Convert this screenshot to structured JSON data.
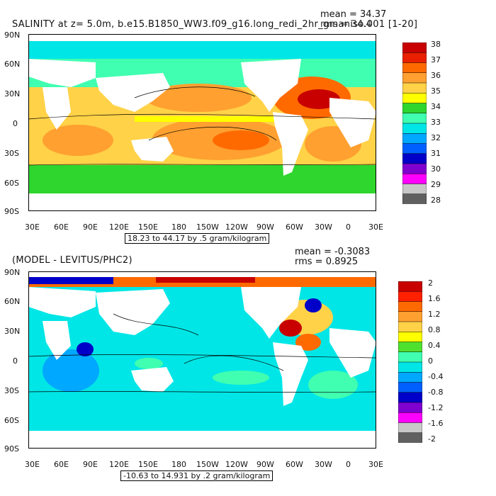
{
  "top_panel": {
    "title": "SALINITY at z=    5.0m, b.e15.B1850_WW3.f09_g16.long_redi_2hr_gmaniso.001 [1-20]",
    "mean_text": "mean = 34.37",
    "rms_text": "rms = 34.4",
    "range_text": "18.23 to 44.17 by .5 gram/kilogram",
    "colorbar": {
      "labels": [
        "38",
        "37",
        "36",
        "35",
        "34",
        "33",
        "32",
        "31",
        "30",
        "29",
        "28"
      ],
      "colors": [
        "#c80000",
        "#e82000",
        "#ff6a00",
        "#ffa030",
        "#ffd248",
        "#ffff00",
        "#2ed62e",
        "#40ffb0",
        "#00e6e6",
        "#00a8ff",
        "#0060ff",
        "#0000c8",
        "#8000d0",
        "#ff00ff",
        "#c8c8c8",
        "#606060"
      ]
    }
  },
  "bottom_panel": {
    "title": "(MODEL - LEVITUS/PHC2)",
    "mean_text": "mean = -0.3083",
    "rms_text": "rms = 0.8925",
    "range_text": "-10.63 to 14.931 by .2 gram/kilogram",
    "colorbar": {
      "labels": [
        "2",
        "1.6",
        "1.2",
        "0.8",
        "0.4",
        "0",
        "-0.4",
        "-0.8",
        "-1.2",
        "-1.6",
        "-2"
      ],
      "colors": [
        "#c80000",
        "#ff2000",
        "#ff6a00",
        "#ffa030",
        "#ffd248",
        "#ffff00",
        "#50e030",
        "#40ffb0",
        "#00e6e6",
        "#00a8ff",
        "#0060ff",
        "#0000c8",
        "#8000d0",
        "#ff00ff",
        "#c8c8c8",
        "#606060"
      ]
    }
  },
  "axes": {
    "lat_labels": [
      "90N",
      "60N",
      "30N",
      "0",
      "30S",
      "60S",
      "90S"
    ],
    "lon_labels": [
      "30E",
      "60E",
      "90E",
      "120E",
      "150E",
      "180",
      "150W",
      "120W",
      "90W",
      "60W",
      "30W",
      "0",
      "30E"
    ]
  }
}
